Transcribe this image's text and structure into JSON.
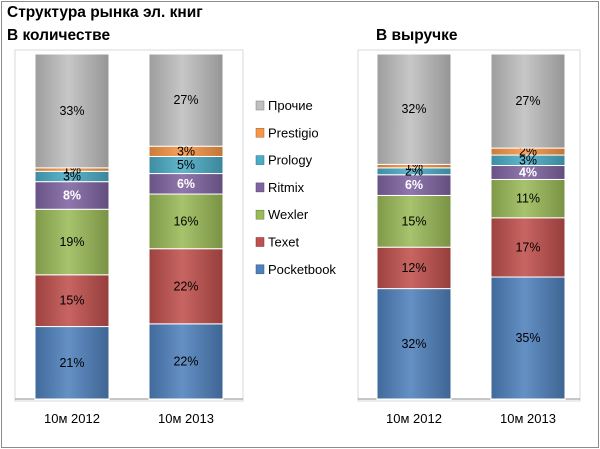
{
  "title": "Структура рынка эл. книг",
  "subtitle_left": "В количестве",
  "subtitle_right": "В выручке",
  "colors": {
    "Pocketbook": "#4f81bd",
    "Texet": "#c0504d",
    "Wexler": "#9bbb59",
    "Ritmix": "#8064a2",
    "Prology": "#4bacc6",
    "Prestigio": "#f79646",
    "Прочие": "#bfbfbf"
  },
  "chart_data": [
    {
      "type": "bar",
      "stacked": "percent",
      "subtitle": "В количестве",
      "categories": [
        "10м 2012",
        "10м 2013"
      ],
      "series": [
        {
          "name": "Pocketbook",
          "values": [
            21,
            22
          ]
        },
        {
          "name": "Texet",
          "values": [
            15,
            22
          ]
        },
        {
          "name": "Wexler",
          "values": [
            19,
            16
          ]
        },
        {
          "name": "Ritmix",
          "values": [
            8,
            6
          ]
        },
        {
          "name": "Prology",
          "values": [
            3,
            5
          ]
        },
        {
          "name": "Prestigio",
          "values": [
            1,
            3
          ]
        },
        {
          "name": "Прочие",
          "values": [
            33,
            27
          ]
        }
      ],
      "ylim": [
        0,
        100
      ]
    },
    {
      "type": "bar",
      "stacked": "percent",
      "subtitle": "В выручке",
      "categories": [
        "10м 2012",
        "10м 2013"
      ],
      "series": [
        {
          "name": "Pocketbook",
          "values": [
            32,
            35
          ]
        },
        {
          "name": "Texet",
          "values": [
            12,
            17
          ]
        },
        {
          "name": "Wexler",
          "values": [
            15,
            11
          ]
        },
        {
          "name": "Ritmix",
          "values": [
            6,
            4
          ]
        },
        {
          "name": "Prology",
          "values": [
            2,
            3
          ]
        },
        {
          "name": "Prestigio",
          "values": [
            1,
            2
          ]
        },
        {
          "name": "Прочие",
          "values": [
            32,
            27
          ]
        }
      ],
      "ylim": [
        0,
        100
      ]
    }
  ],
  "legend": [
    "Прочие",
    "Prestigio",
    "Prology",
    "Ritmix",
    "Wexler",
    "Texet",
    "Pocketbook"
  ],
  "legend_position": "center"
}
